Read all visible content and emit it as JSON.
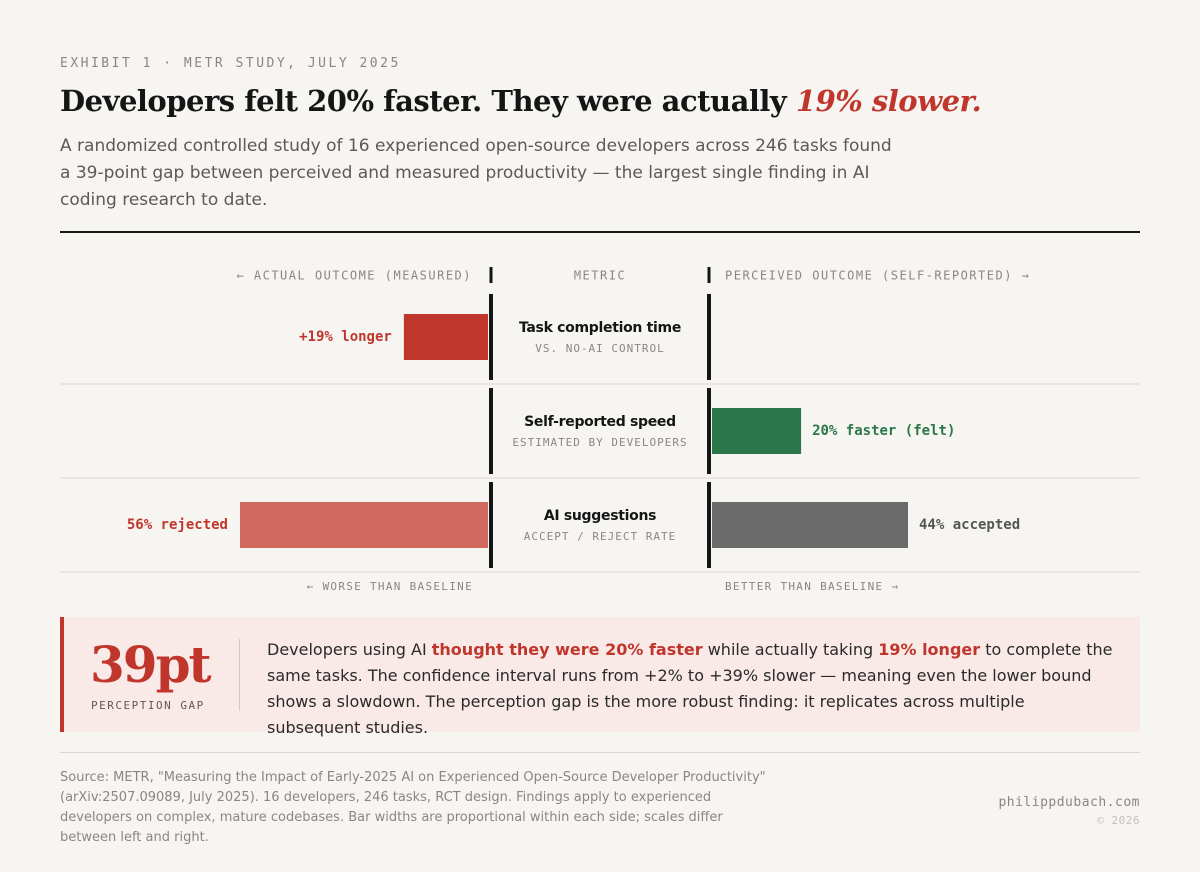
{
  "header": {
    "exhibit": "EXHIBIT 1 · METR STUDY, JULY 2025",
    "title": "Developers felt 20% faster. They were actually",
    "title_emphasis": "19% slower.",
    "subtitle": "A randomized controlled study of 16 experienced open-source developers across 246 tasks found a 39-point gap between perceived and measured productivity — the largest single finding in AI coding research to date."
  },
  "chart_data": {
    "type": "diverging_bar",
    "left_header": "← ACTUAL OUTCOME (MEASURED)",
    "center_header": "METRIC",
    "right_header": "PERCEIVED OUTCOME (SELF-REPORTED) →",
    "categories": [
      "Task completion time",
      "Self-reported speed",
      "AI suggestions"
    ],
    "category_notes": [
      "VS. NO-AI CONTROL",
      "ESTIMATED BY DEVELOPERS",
      "ACCEPT / REJECT RATE"
    ],
    "left": {
      "values": [
        19,
        null,
        56
      ],
      "value_labels": [
        "+19% longer",
        null,
        "56% rejected"
      ],
      "colors": [
        "#c0362c",
        null,
        "#d06a5f"
      ],
      "label_colors": [
        "#c0362c",
        null,
        "#c0362c"
      ]
    },
    "right": {
      "values": [
        null,
        20,
        44
      ],
      "value_labels": [
        null,
        "20% faster (felt)",
        "44% accepted"
      ],
      "colors": [
        null,
        "#2b774a",
        "#6b6b6b"
      ],
      "label_colors": [
        null,
        "#2b774a",
        "#555555"
      ]
    },
    "left_footer": "← WORSE THAN BASELINE",
    "right_footer": "BETTER THAN BASELINE →"
  },
  "callout": {
    "figure": "39pt",
    "figure_label": "PERCEPTION GAP",
    "body": [
      "Developers using AI ",
      "thought they were 20% faster",
      " while actually taking ",
      "19% longer",
      " to complete the same tasks. The confidence interval runs from +2% to +39% slower — meaning even the lower bound shows a slowdown. The perception gap is the more robust finding: it replicates across multiple subsequent studies."
    ]
  },
  "footer": {
    "source": "Source: METR, \"Measuring the Impact of Early-2025 AI on Experienced Open-Source Developer Productivity\" (arXiv:2507.09089, July 2025). 16 developers, 246 tasks, RCT design. Findings apply to experienced developers on complex, mature codebases. Bar widths are proportional within each side; scales differ between left and right.",
    "site": "philippdubach.com",
    "copyright": "© 2026"
  }
}
